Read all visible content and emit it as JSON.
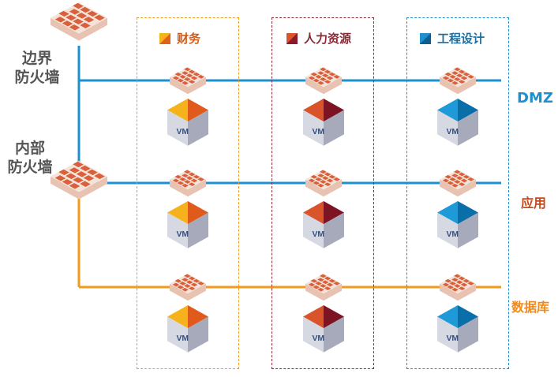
{
  "firewalls": {
    "border": "边界\n防火墙",
    "internal": "内部\n防火墙"
  },
  "zones": [
    {
      "label": "财务",
      "color": "#f08a1c",
      "accent": "#f6b21a"
    },
    {
      "label": "人力资源",
      "color": "#8b2a35",
      "accent": "#d9542a"
    },
    {
      "label": "工程设计",
      "color": "#1e8fcf",
      "accent": "#0a6ea8"
    }
  ],
  "networks": [
    {
      "label": "DMZ",
      "color": "#1e8fcf"
    },
    {
      "label": "应用",
      "color": "#c44a1b"
    },
    {
      "label": "数据库",
      "color": "#f08a1c"
    }
  ],
  "vm_label": "VM",
  "colors": {
    "blue_line": "#1e8fcf",
    "orange_line": "#f39a1e",
    "firewall": "#d9603a",
    "firewall_light": "#f3d7c8",
    "cube_side": "#c9ccd6"
  }
}
